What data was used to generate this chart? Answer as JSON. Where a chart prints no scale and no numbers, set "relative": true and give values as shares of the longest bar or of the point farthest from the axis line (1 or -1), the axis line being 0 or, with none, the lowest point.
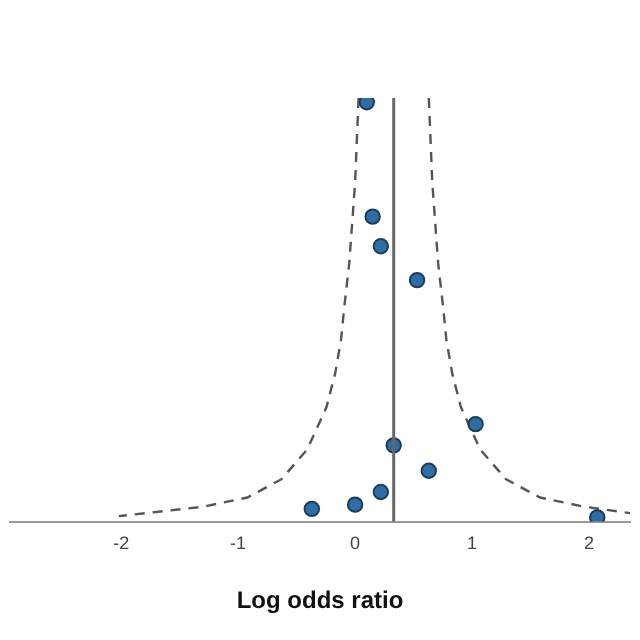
{
  "chart_data": {
    "type": "scatter",
    "xlabel": "Log odds ratio",
    "relative": true,
    "tick_labels": "x",
    "grid": false,
    "legend": false,
    "xlim": [
      -2.95,
      2.35
    ],
    "xticks": [
      -2,
      -1,
      0,
      1,
      2
    ],
    "ref_lines": [
      {
        "axis": "x",
        "value": 0.33,
        "color": "#666666",
        "line_style": "solid"
      }
    ],
    "series": [
      {
        "type": "scatter",
        "marker": "circle",
        "color": "#2f6ea5",
        "x": [
          0.1,
          0.15,
          0.22,
          0.53,
          1.03,
          0.33,
          0.63,
          0.22,
          0,
          -0.37,
          2.07
        ],
        "values": [
          0.99,
          0.72,
          0.65,
          0.57,
          0.23,
          0.18,
          0.12,
          0.07,
          0.04,
          0.03,
          0.01
        ]
      },
      {
        "type": "line",
        "marker": "none",
        "line_style": "dashed",
        "color": "#555555",
        "x": [
          0.03,
          0.0,
          -0.05,
          -0.095,
          -0.12,
          -0.17,
          -0.245,
          -0.41,
          -0.63,
          -0.92,
          -1.3,
          -2.02
        ],
        "values": [
          1.0,
          0.8,
          0.61,
          0.5,
          0.43,
          0.35,
          0.27,
          0.17,
          0.1,
          0.057,
          0.035,
          0.013
        ]
      },
      {
        "type": "line",
        "marker": "none",
        "line_style": "dashed",
        "color": "#555555",
        "x": [
          0.63,
          0.66,
          0.71,
          0.755,
          0.78,
          0.83,
          0.905,
          1.07,
          1.29,
          1.58,
          1.96,
          2.35
        ],
        "values": [
          1.0,
          0.8,
          0.61,
          0.5,
          0.43,
          0.35,
          0.27,
          0.17,
          0.1,
          0.057,
          0.035,
          0.02
        ]
      }
    ]
  }
}
